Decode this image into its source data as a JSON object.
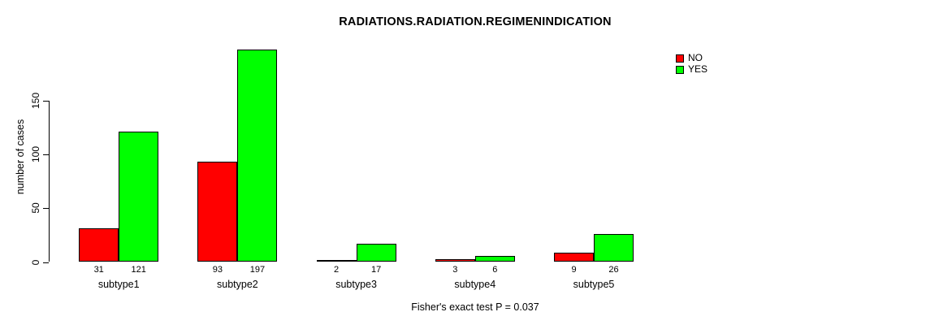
{
  "chart_data": {
    "type": "bar",
    "title": "RADIATIONS.RADIATION.REGIMENINDICATION",
    "ylabel": "number of cases",
    "xlabel": "",
    "footnote": "Fisher's exact test P = 0.037",
    "categories": [
      "subtype1",
      "subtype2",
      "subtype3",
      "subtype4",
      "subtype5"
    ],
    "series": [
      {
        "name": "NO",
        "color": "#ff0000",
        "values": [
          31,
          93,
          2,
          3,
          9
        ]
      },
      {
        "name": "YES",
        "color": "#00ff00",
        "values": [
          121,
          197,
          17,
          6,
          26
        ]
      }
    ],
    "value_labels": [
      [
        "31",
        "121"
      ],
      [
        "93",
        "197"
      ],
      [
        "2",
        "17"
      ],
      [
        "3",
        "6"
      ],
      [
        "9",
        "26"
      ]
    ],
    "yticks": [
      0,
      50,
      100,
      150
    ],
    "ylim": [
      0,
      150
    ],
    "grid": false,
    "legend_position": "top-right",
    "bar_border_color": "#000000",
    "text_color": "#000000",
    "background_color": "#ffffff"
  }
}
